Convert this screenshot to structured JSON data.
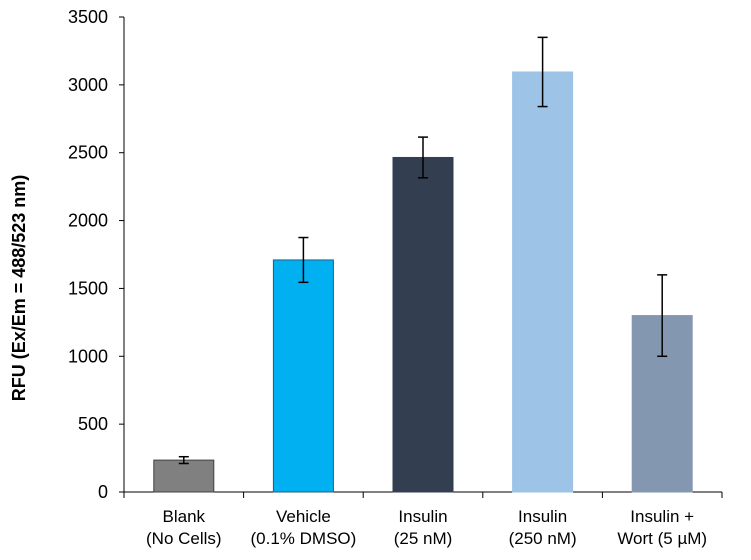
{
  "chart_data": {
    "type": "bar",
    "title": "",
    "xlabel": "",
    "ylabel": "RFU (Ex/Em = 488/523 nm)",
    "ylim": [
      0,
      3500
    ],
    "yticks": [
      0,
      500,
      1000,
      1500,
      2000,
      2500,
      3000,
      3500
    ],
    "grid": false,
    "legend": "none",
    "categories": [
      [
        "Blank",
        "(No Cells)"
      ],
      [
        "Vehicle",
        "(0.1% DMSO)"
      ],
      [
        "Insulin",
        "(25 nM)"
      ],
      [
        "Insulin",
        "(250 nM)"
      ],
      [
        "Insulin +",
        "Wort (5 µM)"
      ]
    ],
    "values": [
      235,
      1710,
      2465,
      3095,
      1300
    ],
    "errors": [
      25,
      165,
      150,
      255,
      300
    ],
    "colors": [
      "#808080",
      "#00b0f0",
      "#333f50",
      "#9dc3e6",
      "#8497b0"
    ],
    "border_colors": [
      "#404040",
      "#1f5f7f",
      "#333f50",
      "#9dc3e6",
      "#8497b0"
    ]
  }
}
